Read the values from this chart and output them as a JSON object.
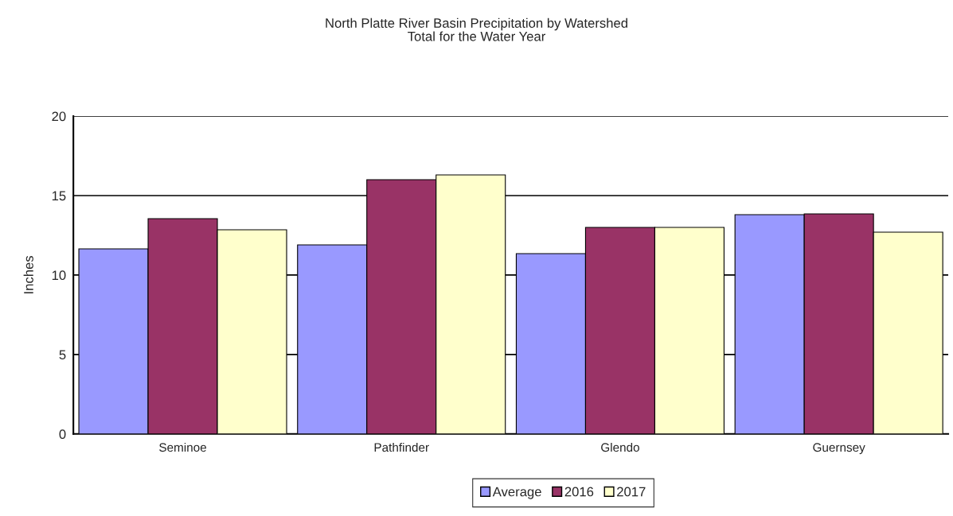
{
  "chart_data": {
    "type": "bar",
    "title": "North Platte River Basin Precipitation by Watershed\nTotal for the Water Year",
    "ylabel": "Inches",
    "categories": [
      "Seminoe",
      "Pathfinder",
      "Glendo",
      "Guernsey"
    ],
    "series": [
      {
        "name": "Average",
        "color": "#9999ff",
        "values": [
          11.65,
          11.9,
          11.35,
          13.8
        ]
      },
      {
        "name": "2016",
        "color": "#993366",
        "values": [
          13.55,
          16.0,
          13.0,
          13.85
        ]
      },
      {
        "name": "2017",
        "color": "#ffffcc",
        "values": [
          12.85,
          16.3,
          13.0,
          12.7
        ]
      }
    ],
    "ylim": [
      0,
      20
    ],
    "yticks": [
      0,
      5,
      10,
      15,
      20
    ],
    "grid": "y",
    "legend": "bottom"
  }
}
